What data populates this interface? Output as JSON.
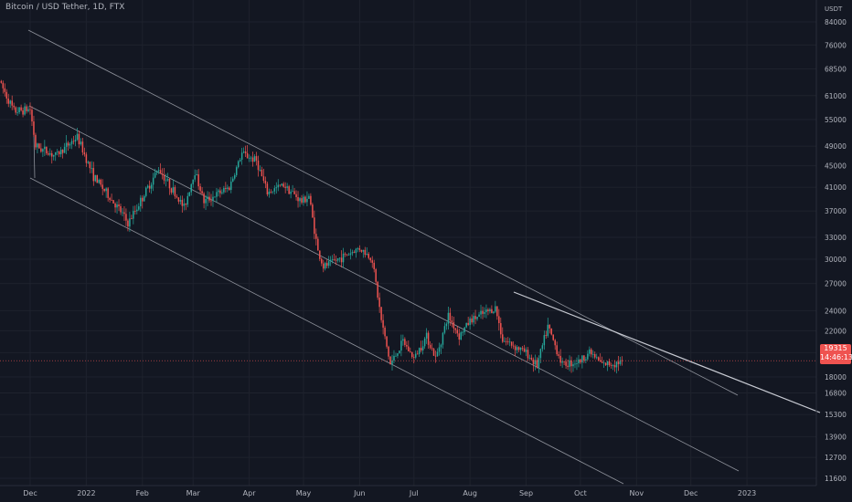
{
  "header": {
    "symbol": "Bitcoin / USD Tether, 1D, FTX"
  },
  "last_price": {
    "value": "19315",
    "countdown": "14:46:13",
    "color": "#ef5350"
  },
  "colors": {
    "background": "#131722",
    "grid": "#1e222d",
    "up": "#26a69a",
    "down": "#ef5350",
    "text": "#b2b5be",
    "line": "#d1d4dc"
  },
  "chart_data": {
    "type": "candlestick",
    "title": "Bitcoin / USD Tether, 1D, FTX",
    "y_unit": "USDT",
    "y_scale": "log",
    "y_ticks": [
      84000,
      76000,
      68500,
      61000,
      55000,
      49000,
      45000,
      41000,
      37000,
      33000,
      30000,
      27000,
      24000,
      22000,
      20000,
      18000,
      16800,
      15300,
      13900,
      12700,
      11600
    ],
    "x_ticks": [
      "Dec",
      "2022",
      "Feb",
      "Mar",
      "Apr",
      "May",
      "Jun",
      "Jul",
      "Aug",
      "Sep",
      "Oct",
      "Nov",
      "Dec",
      "2023"
    ],
    "grid": true,
    "price_path_points": [
      [
        "2021-11-14",
        65000
      ],
      [
        "2021-11-22",
        57000
      ],
      [
        "2021-12-01",
        57500
      ],
      [
        "2021-12-04",
        49000
      ],
      [
        "2021-12-15",
        47000
      ],
      [
        "2021-12-27",
        51000
      ],
      [
        "2022-01-05",
        43000
      ],
      [
        "2022-01-21",
        36500
      ],
      [
        "2022-01-24",
        35000
      ],
      [
        "2022-02-10",
        44500
      ],
      [
        "2022-02-24",
        37500
      ],
      [
        "2022-03-02",
        44000
      ],
      [
        "2022-03-07",
        38500
      ],
      [
        "2022-03-21",
        41000
      ],
      [
        "2022-03-28",
        47500
      ],
      [
        "2022-04-05",
        46000
      ],
      [
        "2022-04-11",
        40000
      ],
      [
        "2022-04-20",
        41500
      ],
      [
        "2022-04-30",
        38500
      ],
      [
        "2022-05-04",
        39500
      ],
      [
        "2022-05-09",
        31000
      ],
      [
        "2022-05-12",
        29000
      ],
      [
        "2022-05-20",
        30000
      ],
      [
        "2022-06-01",
        31500
      ],
      [
        "2022-06-08",
        30000
      ],
      [
        "2022-06-13",
        23000
      ],
      [
        "2022-06-18",
        19000
      ],
      [
        "2022-06-25",
        21000
      ],
      [
        "2022-07-01",
        19500
      ],
      [
        "2022-07-08",
        21500
      ],
      [
        "2022-07-13",
        19500
      ],
      [
        "2022-07-20",
        23500
      ],
      [
        "2022-07-26",
        21500
      ],
      [
        "2022-08-01",
        23000
      ],
      [
        "2022-08-15",
        24300
      ],
      [
        "2022-08-19",
        21200
      ],
      [
        "2022-09-01",
        20000
      ],
      [
        "2022-09-07",
        18900
      ],
      [
        "2022-09-13",
        22400
      ],
      [
        "2022-09-21",
        19000
      ],
      [
        "2022-10-01",
        19300
      ],
      [
        "2022-10-06",
        20100
      ],
      [
        "2022-10-13",
        19000
      ],
      [
        "2022-10-20",
        19100
      ],
      [
        "2022-10-24",
        19315
      ]
    ],
    "last_price": 19315
  }
}
